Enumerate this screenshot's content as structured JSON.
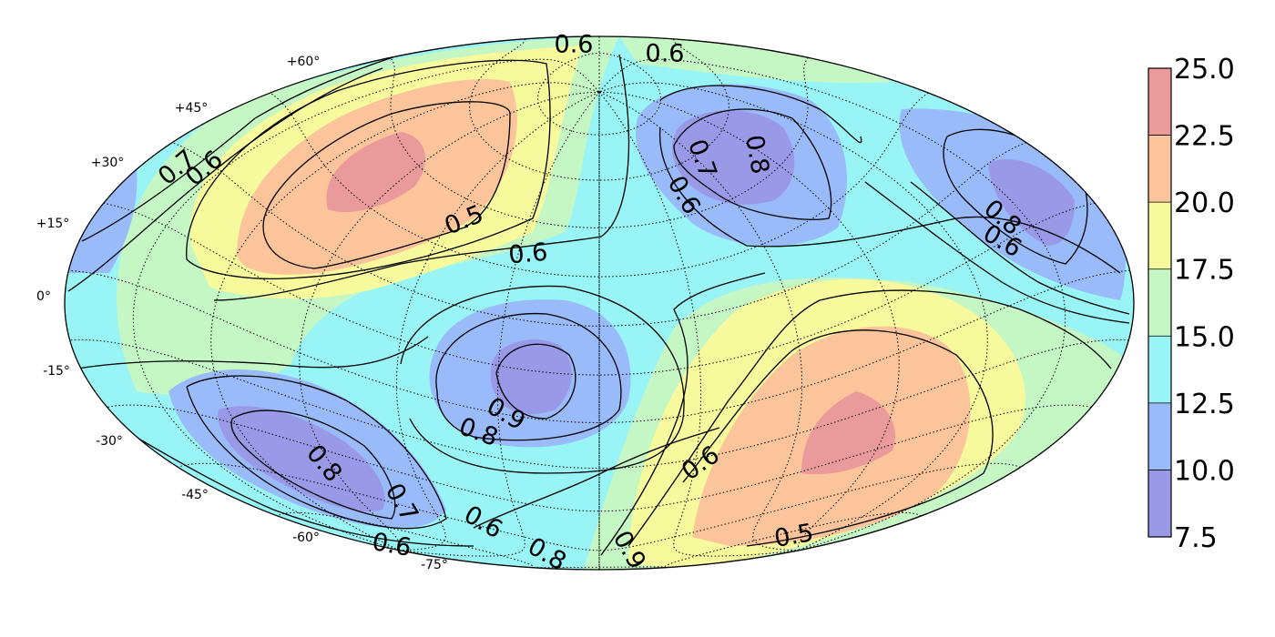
{
  "chart_data": {
    "type": "heatmap",
    "projection": "hammer-aitoff",
    "title": "",
    "grid": true,
    "latitude_ticks": [
      "+60°",
      "+45°",
      "+30°",
      "+15°",
      "0°",
      "-15°",
      "-30°",
      "-45°",
      "-60°",
      "-75°"
    ],
    "colorbar": {
      "placement": "right",
      "ticks": [
        "25.0",
        "22.5",
        "20.0",
        "17.5",
        "15.0",
        "12.5",
        "10.0",
        "7.5"
      ],
      "levels": [
        {
          "from": 7.5,
          "to": 10.0,
          "color": "#9999e8"
        },
        {
          "from": 10.0,
          "to": 12.5,
          "color": "#99bbfa"
        },
        {
          "from": 12.5,
          "to": 15.0,
          "color": "#99f4f6"
        },
        {
          "from": 15.0,
          "to": 17.5,
          "color": "#c4f7c4"
        },
        {
          "from": 17.5,
          "to": 20.0,
          "color": "#f7f99d"
        },
        {
          "from": 20.0,
          "to": 22.5,
          "color": "#fbc49a"
        },
        {
          "from": 22.5,
          "to": 25.0,
          "color": "#eb9a9b"
        }
      ]
    },
    "filled_regions": [
      {
        "level": 22.5,
        "lon": -75,
        "lat": 30
      },
      {
        "level": 22.5,
        "lon": 105,
        "lat": -30
      },
      {
        "level": 7.5,
        "lon": 40,
        "lat": 38
      },
      {
        "level": 7.5,
        "lon": 160,
        "lat": 30
      },
      {
        "level": 7.5,
        "lon": -10,
        "lat": -20
      },
      {
        "level": 7.5,
        "lon": -140,
        "lat": -35
      }
    ],
    "contour_labels": [
      "0.5",
      "0.5",
      "0.6",
      "0.6",
      "0.6",
      "0.6",
      "0.6",
      "0.6",
      "0.6",
      "0.6",
      "0.6",
      "0.7",
      "0.7",
      "0.7",
      "0.8",
      "0.8",
      "0.8",
      "0.8",
      "0.8",
      "0.9",
      "0.9"
    ]
  }
}
